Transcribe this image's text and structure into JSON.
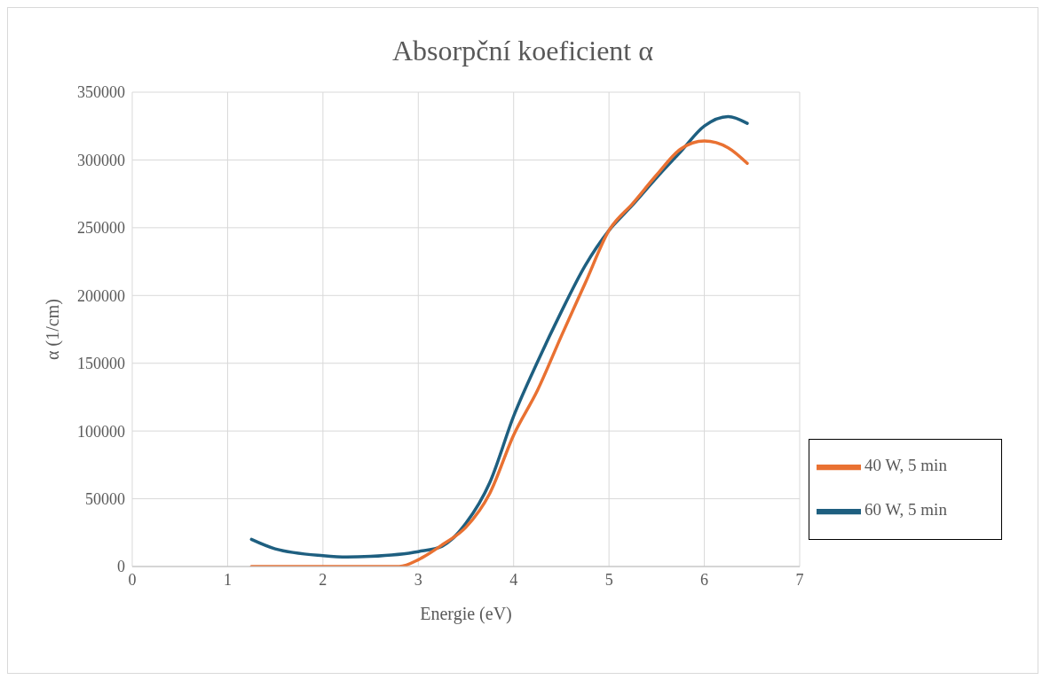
{
  "chart_data": {
    "type": "line",
    "title": "Absorpční koeficient α",
    "xlabel": "Energie (eV)",
    "ylabel": "α (1/cm)",
    "xlim": [
      0,
      7
    ],
    "xticks": [
      0,
      1,
      2,
      3,
      4,
      5,
      6,
      7
    ],
    "ylim": [
      0,
      350000
    ],
    "yticks": [
      0,
      50000,
      100000,
      150000,
      200000,
      250000,
      300000,
      350000
    ],
    "grid": true,
    "legend": "bottom right",
    "marker": "none",
    "line_style": "solid",
    "series": [
      {
        "name": "60 W, 5 min",
        "color": "#1e5f80",
        "x": [
          1.25,
          1.5,
          2,
          2.25,
          2.5,
          3,
          3.25,
          3.5,
          3.75,
          4,
          4.25,
          4.5,
          4.75,
          5,
          5.25,
          5.5,
          5.75,
          6,
          6.25,
          6.45
        ],
        "values": [
          20000,
          13000,
          8000,
          7000,
          7500,
          11000,
          15000,
          32000,
          62000,
          111000,
          151000,
          188000,
          222000,
          248000,
          267000,
          287000,
          306000,
          325000,
          332000,
          327000
        ]
      },
      {
        "name": "40 W, 5 min",
        "color": "#e97132",
        "x": [
          1.25,
          1.5,
          2,
          2.5,
          2.8,
          3,
          3.1,
          3.25,
          3.5,
          3.75,
          4,
          4.25,
          4.5,
          4.75,
          5,
          5.25,
          5.5,
          5.75,
          6,
          6.25,
          6.45
        ],
        "values": [
          0,
          0,
          0,
          0,
          0,
          5000,
          9000,
          16000,
          29000,
          54000,
          97000,
          130000,
          170000,
          209000,
          248000,
          268000,
          289000,
          308000,
          314000,
          309000,
          297500
        ]
      }
    ]
  }
}
